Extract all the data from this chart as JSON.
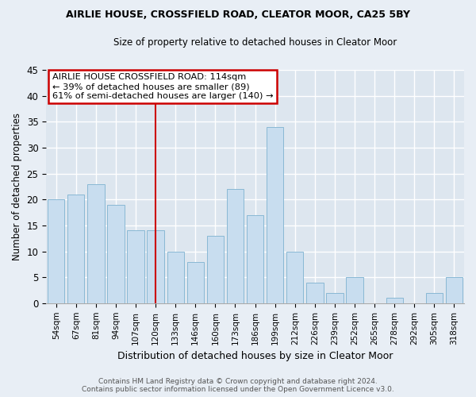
{
  "title": "AIRLIE HOUSE, CROSSFIELD ROAD, CLEATOR MOOR, CA25 5BY",
  "subtitle": "Size of property relative to detached houses in Cleator Moor",
  "xlabel": "Distribution of detached houses by size in Cleator Moor",
  "ylabel": "Number of detached properties",
  "bar_labels": [
    "54sqm",
    "67sqm",
    "81sqm",
    "94sqm",
    "107sqm",
    "120sqm",
    "133sqm",
    "146sqm",
    "160sqm",
    "173sqm",
    "186sqm",
    "199sqm",
    "212sqm",
    "226sqm",
    "239sqm",
    "252sqm",
    "265sqm",
    "278sqm",
    "292sqm",
    "305sqm",
    "318sqm"
  ],
  "bar_values": [
    20,
    21,
    23,
    19,
    14,
    14,
    10,
    8,
    13,
    22,
    17,
    34,
    10,
    4,
    2,
    5,
    0,
    1,
    0,
    2,
    5
  ],
  "bar_color": "#c8ddef",
  "bar_edge_color": "#89b8d4",
  "vline_x": 5,
  "vline_color": "#cc0000",
  "annotation_title": "AIRLIE HOUSE CROSSFIELD ROAD: 114sqm",
  "annotation_line1": "← 39% of detached houses are smaller (89)",
  "annotation_line2": "61% of semi-detached houses are larger (140) →",
  "annotation_box_color": "#ffffff",
  "annotation_box_edge": "#cc0000",
  "ylim": [
    0,
    45
  ],
  "yticks": [
    0,
    5,
    10,
    15,
    20,
    25,
    30,
    35,
    40,
    45
  ],
  "footer1": "Contains HM Land Registry data © Crown copyright and database right 2024.",
  "footer2": "Contains public sector information licensed under the Open Government Licence v3.0.",
  "bg_color": "#e8eef5",
  "plot_bg_color": "#dde6ef",
  "grid_color": "#ffffff"
}
